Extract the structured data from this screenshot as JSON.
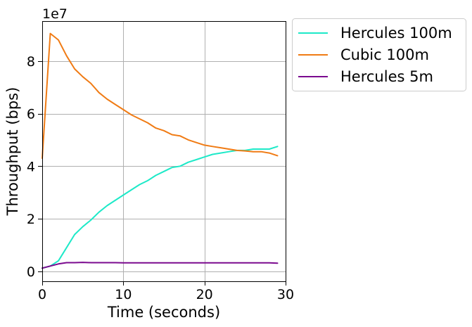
{
  "chart_data": {
    "type": "line",
    "xlabel": "Time (seconds)",
    "ylabel": "Throughput (bps)",
    "y_offset_label": "1e7",
    "xlim": [
      0,
      30
    ],
    "ylim": [
      -3800000,
      95200000
    ],
    "xticks": [
      0,
      10,
      20,
      30
    ],
    "xtick_labels": [
      "0",
      "10",
      "20",
      "30"
    ],
    "yticks": [
      0,
      20000000,
      40000000,
      60000000,
      80000000
    ],
    "ytick_labels": [
      "0",
      "2",
      "4",
      "6",
      "8"
    ],
    "grid": true,
    "legend_position": "outside-top-right",
    "x": [
      0,
      1,
      2,
      3,
      4,
      5,
      6,
      7,
      8,
      9,
      10,
      11,
      12,
      13,
      14,
      15,
      16,
      17,
      18,
      19,
      20,
      21,
      22,
      23,
      24,
      25,
      26,
      27,
      28,
      29
    ],
    "series": [
      {
        "name": "Hercules 100m",
        "color": "#1de9c8",
        "values": [
          1200000,
          2000000,
          4000000,
          9000000,
          14000000,
          17000000,
          19500000,
          22500000,
          25000000,
          27000000,
          29000000,
          31000000,
          33000000,
          34500000,
          36500000,
          38000000,
          39500000,
          40000000,
          41500000,
          42500000,
          43500000,
          44500000,
          45000000,
          45500000,
          46000000,
          46000000,
          46500000,
          46500000,
          46500000,
          47500000
        ]
      },
      {
        "name": "Cubic 100m",
        "color": "#f07b14",
        "values": [
          43000000,
          90500000,
          88000000,
          82000000,
          77000000,
          74000000,
          71500000,
          68000000,
          65500000,
          63500000,
          61500000,
          59500000,
          58000000,
          56500000,
          54500000,
          53500000,
          52000000,
          51500000,
          50000000,
          49000000,
          48000000,
          47500000,
          47000000,
          46500000,
          46000000,
          45800000,
          45500000,
          45500000,
          45000000,
          44000000
        ]
      },
      {
        "name": "Hercules 5m",
        "color": "#7b0a8f",
        "values": [
          1200000,
          2000000,
          2800000,
          3300000,
          3300000,
          3400000,
          3300000,
          3300000,
          3300000,
          3300000,
          3250000,
          3250000,
          3250000,
          3250000,
          3200000,
          3200000,
          3200000,
          3200000,
          3200000,
          3200000,
          3200000,
          3200000,
          3200000,
          3200000,
          3200000,
          3200000,
          3200000,
          3200000,
          3200000,
          3100000
        ]
      }
    ]
  }
}
